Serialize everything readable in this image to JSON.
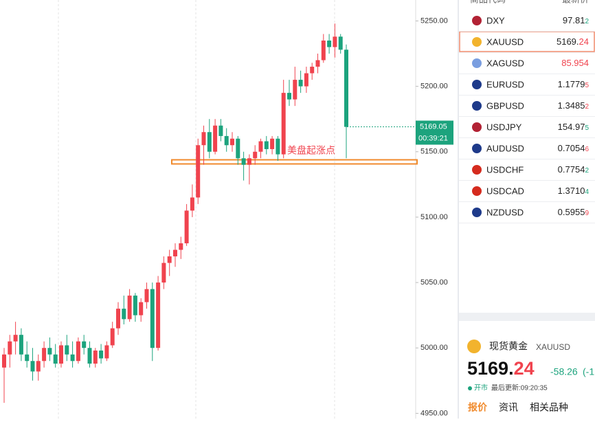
{
  "chart_data": {
    "type": "candlestick",
    "up_color": "#f0434e",
    "down_color": "#1ca37d",
    "ylim": [
      4946,
      5266
    ],
    "yticks": [
      {
        "value": 4950,
        "label": "4950.00"
      },
      {
        "value": 5000,
        "label": "5000.00"
      },
      {
        "value": 5050,
        "label": "5050.00"
      },
      {
        "value": 5100,
        "label": "5100.00"
      },
      {
        "value": 5150,
        "label": "5150.00"
      },
      {
        "value": 5200,
        "label": "5200.00"
      },
      {
        "value": 5250,
        "label": "5250.00"
      }
    ],
    "open": [
      4985,
      4995,
      5005,
      5010,
      4995,
      4990,
      4982,
      4990,
      5000,
      4995,
      4988,
      5002,
      4995,
      4990,
      5005,
      5000,
      4988,
      4998,
      4992,
      5002,
      5015,
      5030,
      5022,
      5040,
      5025,
      5035,
      5045,
      5000,
      5050,
      5065,
      5070,
      5075,
      5080,
      5105,
      5115,
      5155,
      5165,
      5150,
      5170,
      5162,
      5155,
      5160,
      5145,
      5140,
      5145,
      5150,
      5158,
      5152,
      5160,
      5148,
      5195,
      5190,
      5205,
      5200,
      5210,
      5215,
      5220,
      5235,
      5230,
      5238,
      5228
    ],
    "high": [
      5000,
      5010,
      5020,
      5015,
      5005,
      5000,
      4995,
      5005,
      5008,
      5003,
      5005,
      5010,
      5005,
      5008,
      5010,
      5005,
      5000,
      5003,
      5005,
      5020,
      5035,
      5040,
      5045,
      5042,
      5038,
      5050,
      5050,
      5055,
      5070,
      5075,
      5080,
      5085,
      5110,
      5125,
      5160,
      5170,
      5175,
      5175,
      5175,
      5168,
      5165,
      5162,
      5150,
      5148,
      5155,
      5160,
      5162,
      5162,
      5162,
      5205,
      5205,
      5215,
      5212,
      5215,
      5218,
      5225,
      5240,
      5240,
      5248,
      5240,
      5232
    ],
    "low": [
      4958,
      4985,
      4995,
      4990,
      4985,
      4975,
      4975,
      4985,
      4990,
      4985,
      4985,
      4990,
      4985,
      4988,
      4995,
      4985,
      4985,
      4988,
      4990,
      5000,
      5010,
      5018,
      5020,
      5020,
      5020,
      5030,
      4990,
      4998,
      5045,
      5055,
      5062,
      5068,
      5078,
      5100,
      5110,
      5140,
      5145,
      5148,
      5158,
      5150,
      5150,
      5140,
      5128,
      5125,
      5140,
      5145,
      5148,
      5148,
      5143,
      5145,
      5185,
      5185,
      5195,
      5195,
      5205,
      5210,
      5218,
      5225,
      5222,
      5225,
      5145
    ],
    "close": [
      4995,
      5005,
      5010,
      4995,
      4990,
      4982,
      4990,
      5000,
      4995,
      4988,
      5002,
      4995,
      4990,
      5005,
      5000,
      4988,
      4998,
      4992,
      5002,
      5015,
      5030,
      5022,
      5040,
      5025,
      5035,
      5045,
      5000,
      5050,
      5065,
      5070,
      5075,
      5080,
      5105,
      5115,
      5155,
      5165,
      5150,
      5170,
      5162,
      5155,
      5160,
      5145,
      5140,
      5145,
      5150,
      5158,
      5152,
      5160,
      5148,
      5195,
      5190,
      5205,
      5200,
      5210,
      5215,
      5220,
      5235,
      5230,
      5238,
      5228,
      5169
    ],
    "last_price": 5169.05,
    "countdown": "00:39:21",
    "annotation": "美盘起涨点"
  },
  "watchlist": {
    "header": [
      "商品代码",
      "最新价"
    ],
    "rows": [
      {
        "symbol": "DXY",
        "price": "97.81",
        "digit": "2",
        "price_color": "#222",
        "digit_color": "#1ca37d",
        "flag": "#b22234"
      },
      {
        "symbol": "XAUUSD",
        "price": "5169.",
        "digit": "24",
        "price_color": "#222",
        "digit_color": "#f0434e",
        "flag": "#f2b32d"
      },
      {
        "symbol": "XAGUSD",
        "price": "85.954",
        "digit": "",
        "price_color": "#f0434e",
        "digit_color": "#f0434e",
        "flag": "#7a9ee0"
      },
      {
        "symbol": "EURUSD",
        "price": "1.1779",
        "digit": "5",
        "price_color": "#222",
        "digit_color": "#f0434e",
        "flag": "#1e3a8a"
      },
      {
        "symbol": "GBPUSD",
        "price": "1.3485",
        "digit": "2",
        "price_color": "#222",
        "digit_color": "#f0434e",
        "flag": "#1e3a8a"
      },
      {
        "symbol": "USDJPY",
        "price": "154.97",
        "digit": "5",
        "price_color": "#222",
        "digit_color": "#1ca37d",
        "flag": "#b22234"
      },
      {
        "symbol": "AUDUSD",
        "price": "0.7054",
        "digit": "6",
        "price_color": "#222",
        "digit_color": "#f0434e",
        "flag": "#1e3a8a"
      },
      {
        "symbol": "USDCHF",
        "price": "0.7754",
        "digit": "2",
        "price_color": "#222",
        "digit_color": "#1ca37d",
        "flag": "#d52b1e"
      },
      {
        "symbol": "USDCAD",
        "price": "1.3710",
        "digit": "4",
        "price_color": "#222",
        "digit_color": "#1ca37d",
        "flag": "#d52b1e"
      },
      {
        "symbol": "NZDUSD",
        "price": "0.5955",
        "digit": "9",
        "price_color": "#222",
        "digit_color": "#f0434e",
        "flag": "#1e3a8a"
      }
    ]
  },
  "quote": {
    "name": "现货黄金",
    "symbol": "XAUUSD",
    "price": "5169.",
    "price_digits": "24",
    "change": "-58.26",
    "change_pct": "(-1",
    "status": "开市",
    "updated": "最后更新:09:20:35",
    "tabs": [
      "报价",
      "资讯",
      "相关品种"
    ]
  }
}
